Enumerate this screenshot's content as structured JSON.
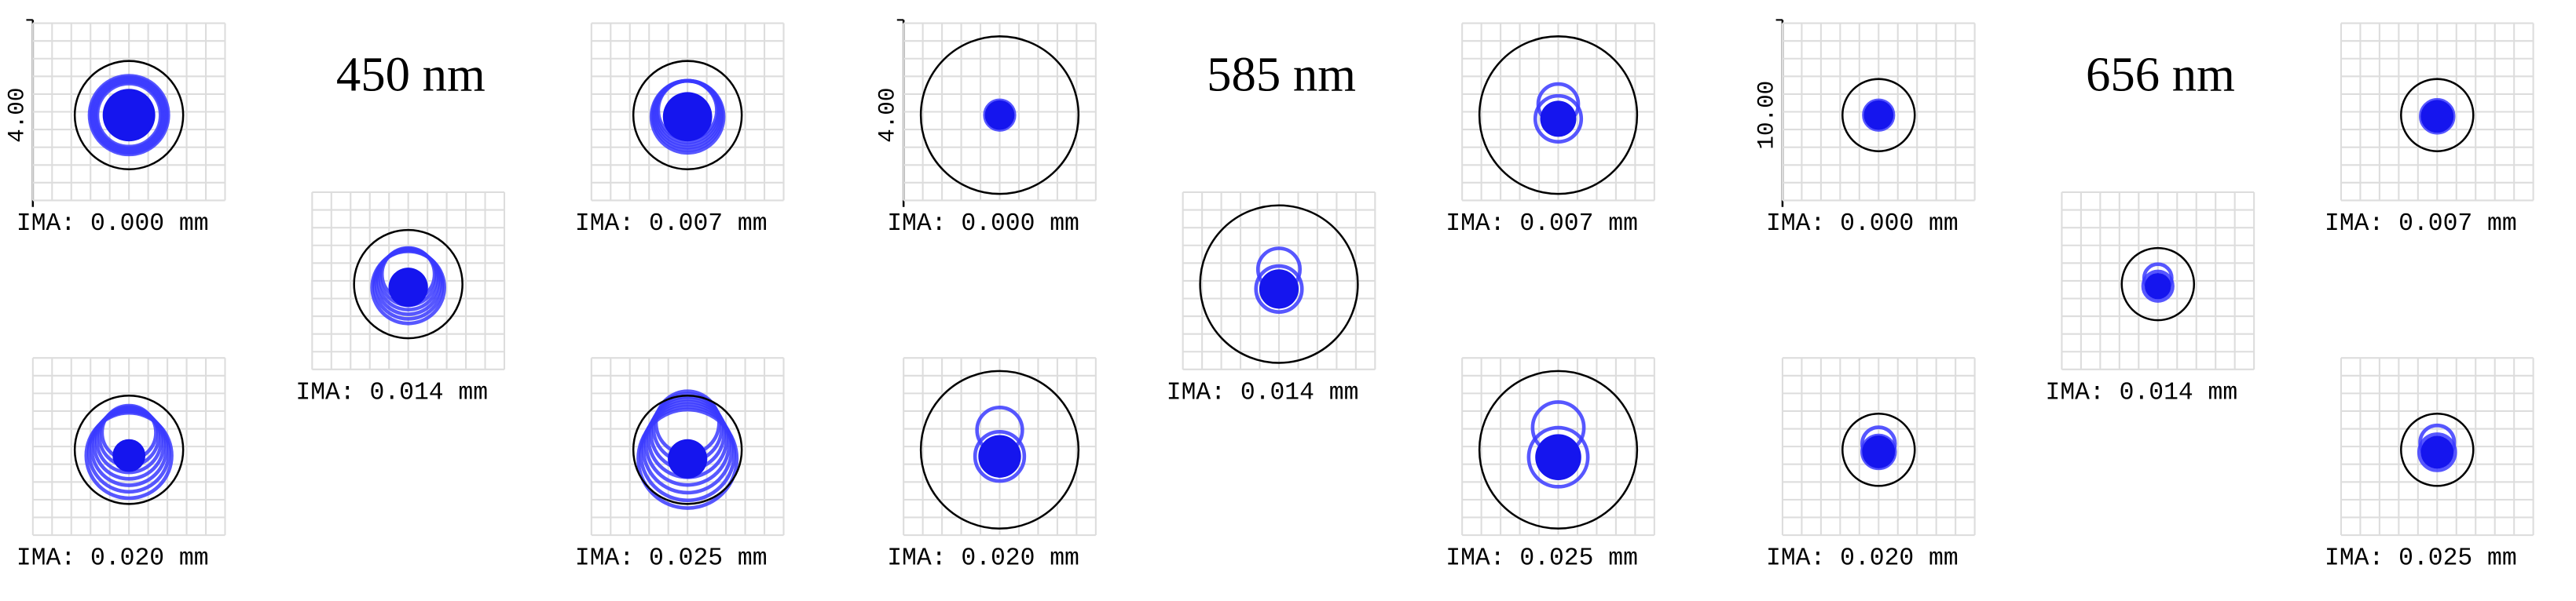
{
  "groups": [
    {
      "title": "450 nm",
      "scale": "4.00",
      "panels": [
        {
          "label": "IMA: 0.000 mm"
        },
        {
          "label": "IMA: 0.007 mm"
        },
        {
          "label": "IMA: 0.014 mm"
        },
        {
          "label": "IMA: 0.020 mm"
        },
        {
          "label": "IMA: 0.025 mm"
        }
      ]
    },
    {
      "title": "585 nm",
      "scale": "4.00",
      "panels": [
        {
          "label": "IMA: 0.000 mm"
        },
        {
          "label": "IMA: 0.007 mm"
        },
        {
          "label": "IMA: 0.014 mm"
        },
        {
          "label": "IMA: 0.020 mm"
        },
        {
          "label": "IMA: 0.025 mm"
        }
      ]
    },
    {
      "title": "656 nm",
      "scale": "10.00",
      "panels": [
        {
          "label": "IMA: 0.000 mm"
        },
        {
          "label": "IMA: 0.007 mm"
        },
        {
          "label": "IMA: 0.014 mm"
        },
        {
          "label": "IMA: 0.020 mm"
        },
        {
          "label": "IMA: 0.025 mm"
        }
      ]
    }
  ]
}
